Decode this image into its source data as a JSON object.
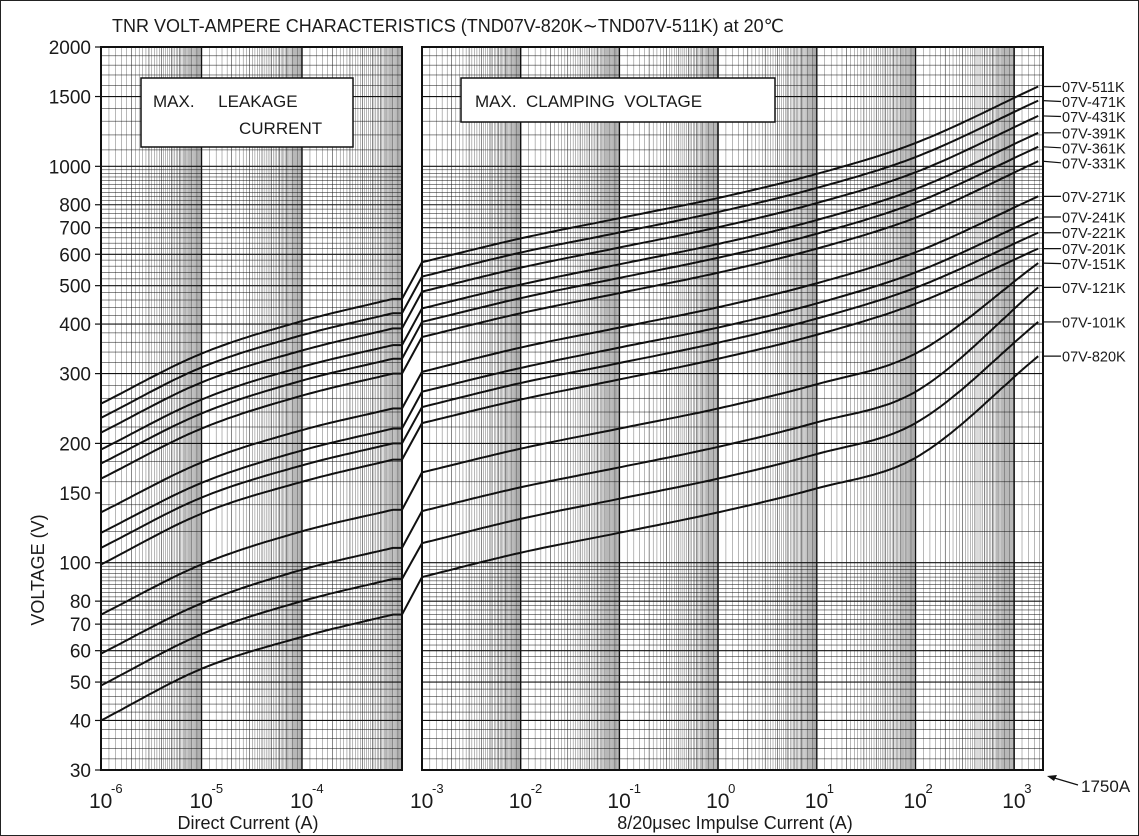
{
  "chart_data": {
    "type": "line",
    "title": "TNR VOLT-AMPERE CHARACTERISTICS (TND07V-820K∼TND07V-511K)  at 20℃",
    "ylabel": "VOLTAGE (V)",
    "yscale": "log",
    "ylim": [
      30,
      2000
    ],
    "y_ticks": [
      {
        "v": 2000,
        "label": "2000"
      },
      {
        "v": 1500,
        "label": "1500"
      },
      {
        "v": 1000,
        "label": "1000"
      },
      {
        "v": 800,
        "label": "800"
      },
      {
        "v": 700,
        "label": "700"
      },
      {
        "v": 600,
        "label": "600"
      },
      {
        "v": 500,
        "label": "500"
      },
      {
        "v": 400,
        "label": "400"
      },
      {
        "v": 300,
        "label": "300"
      },
      {
        "v": 200,
        "label": "200"
      },
      {
        "v": 150,
        "label": "150"
      },
      {
        "v": 100,
        "label": "100"
      },
      {
        "v": 80,
        "label": "80"
      },
      {
        "v": 70,
        "label": "70"
      },
      {
        "v": 60,
        "label": "60"
      },
      {
        "v": 50,
        "label": "50"
      },
      {
        "v": 40,
        "label": "40"
      },
      {
        "v": 30,
        "label": "30"
      }
    ],
    "panels": [
      {
        "name": "dc",
        "xlabel": "Direct Current (A)",
        "xscale": "log",
        "xlim": [
          1e-06,
          0.001
        ],
        "x_ticks": [
          {
            "base": "10",
            "exp": "-6"
          },
          {
            "base": "10",
            "exp": "-5"
          },
          {
            "base": "10",
            "exp": "-4"
          }
        ],
        "annotation": [
          "MAX.     LEAKAGE",
          "CURRENT"
        ]
      },
      {
        "name": "impulse",
        "xlabel": "8/20μsec  Impulse  Current (A)",
        "xscale": "log",
        "xlim": [
          0.001,
          1750
        ],
        "x_ticks": [
          {
            "base": "10",
            "exp": "-3"
          },
          {
            "base": "10",
            "exp": "-2"
          },
          {
            "base": "10",
            "exp": "-1"
          },
          {
            "base": "10",
            "exp": "0"
          },
          {
            "base": "10",
            "exp": "1"
          },
          {
            "base": "10",
            "exp": "2"
          },
          {
            "base": "10",
            "exp": "3"
          }
        ],
        "annotation": [
          "MAX.  CLAMPING  VOLTAGE"
        ]
      }
    ],
    "max_current_marker": "1750A",
    "series": [
      {
        "name": "07V-511K",
        "dc": {
          "x": [
            1e-06,
            1e-05,
            0.0001,
            0.0008
          ],
          "y": [
            252,
            337,
            407,
            463
          ]
        },
        "impulse": {
          "x": [
            0.001,
            0.01,
            0.1,
            1,
            10,
            100,
            1750
          ],
          "y": [
            573,
            658,
            740,
            832,
            957,
            1145,
            1590
          ]
        }
      },
      {
        "name": "07V-471K",
        "dc": {
          "x": [
            1e-06,
            1e-05,
            0.0001,
            0.0008
          ],
          "y": [
            232,
            311,
            375,
            426
          ]
        },
        "impulse": {
          "x": [
            0.001,
            0.01,
            0.1,
            1,
            10,
            100,
            1750
          ],
          "y": [
            527,
            606,
            681,
            767,
            882,
            1055,
            1465
          ]
        }
      },
      {
        "name": "07V-431K",
        "dc": {
          "x": [
            1e-06,
            1e-05,
            0.0001,
            0.0008
          ],
          "y": [
            213,
            285,
            343,
            390
          ]
        },
        "impulse": {
          "x": [
            0.001,
            0.01,
            0.1,
            1,
            10,
            100,
            1750
          ],
          "y": [
            483,
            555,
            624,
            702,
            808,
            966,
            1340
          ]
        }
      },
      {
        "name": "07V-391K",
        "dc": {
          "x": [
            1e-06,
            1e-05,
            0.0001,
            0.0008
          ],
          "y": [
            193,
            258,
            312,
            354
          ]
        },
        "impulse": {
          "x": [
            0.001,
            0.01,
            0.1,
            1,
            10,
            100,
            1750
          ],
          "y": [
            438,
            503,
            566,
            637,
            732,
            876,
            1215
          ]
        }
      },
      {
        "name": "07V-361K",
        "dc": {
          "x": [
            1e-06,
            1e-05,
            0.0001,
            0.0008
          ],
          "y": [
            178,
            238,
            288,
            327
          ]
        },
        "impulse": {
          "x": [
            0.001,
            0.01,
            0.1,
            1,
            10,
            100,
            1750
          ],
          "y": [
            405,
            465,
            523,
            588,
            676,
            809,
            1120
          ]
        }
      },
      {
        "name": "07V-331K",
        "dc": {
          "x": [
            1e-06,
            1e-05,
            0.0001,
            0.0008
          ],
          "y": [
            163,
            218,
            264,
            300
          ]
        },
        "impulse": {
          "x": [
            0.001,
            0.01,
            0.1,
            1,
            10,
            100,
            1750
          ],
          "y": [
            371,
            426,
            479,
            539,
            620,
            742,
            1030
          ]
        }
      },
      {
        "name": "07V-271K",
        "dc": {
          "x": [
            1e-06,
            1e-05,
            0.0001,
            0.0008
          ],
          "y": [
            134,
            179,
            216,
            245
          ]
        },
        "impulse": {
          "x": [
            0.001,
            0.01,
            0.1,
            1,
            10,
            100,
            1750
          ],
          "y": [
            303,
            349,
            392,
            441,
            507,
            607,
            840
          ]
        }
      },
      {
        "name": "07V-241K",
        "dc": {
          "x": [
            1e-06,
            1e-05,
            0.0001,
            0.0008
          ],
          "y": [
            119,
            159,
            192,
            218
          ]
        },
        "impulse": {
          "x": [
            0.001,
            0.01,
            0.1,
            1,
            10,
            100,
            1750
          ],
          "y": [
            270,
            310,
            349,
            392,
            451,
            540,
            745
          ]
        }
      },
      {
        "name": "07V-221K",
        "dc": {
          "x": [
            1e-06,
            1e-05,
            0.0001,
            0.0008
          ],
          "y": [
            109,
            146,
            176,
            200
          ]
        },
        "impulse": {
          "x": [
            0.001,
            0.01,
            0.1,
            1,
            10,
            100,
            1750
          ],
          "y": [
            247,
            284,
            319,
            359,
            413,
            494,
            680
          ]
        }
      },
      {
        "name": "07V-201K",
        "dc": {
          "x": [
            1e-06,
            1e-05,
            0.0001,
            0.0008
          ],
          "y": [
            99,
            133,
            160,
            182
          ]
        },
        "impulse": {
          "x": [
            0.001,
            0.01,
            0.1,
            1,
            10,
            100,
            1750
          ],
          "y": [
            225,
            258,
            290,
            327,
            376,
            450,
            620
          ]
        }
      },
      {
        "name": "07V-151K",
        "dc": {
          "x": [
            1e-06,
            1e-05,
            0.0001,
            0.0008
          ],
          "y": [
            74,
            99,
            120,
            136
          ]
        },
        "impulse": {
          "x": [
            0.001,
            0.01,
            0.1,
            1,
            10,
            100,
            1750
          ],
          "y": [
            169,
            194,
            218,
            245,
            282,
            337,
            570
          ]
        }
      },
      {
        "name": "07V-121K",
        "dc": {
          "x": [
            1e-06,
            1e-05,
            0.0001,
            0.0008
          ],
          "y": [
            59,
            79,
            96,
            109
          ]
        },
        "impulse": {
          "x": [
            0.001,
            0.01,
            0.1,
            1,
            10,
            100,
            1750
          ],
          "y": [
            135,
            155,
            174,
            196,
            226,
            270,
            495
          ]
        }
      },
      {
        "name": "07V-101K",
        "dc": {
          "x": [
            1e-06,
            1e-05,
            0.0001,
            0.0008
          ],
          "y": [
            49,
            66,
            80,
            91
          ]
        },
        "impulse": {
          "x": [
            0.001,
            0.01,
            0.1,
            1,
            10,
            100,
            1750
          ],
          "y": [
            112,
            129,
            145,
            163,
            188,
            225,
            405
          ]
        }
      },
      {
        "name": "07V-820K",
        "dc": {
          "x": [
            1e-06,
            1e-05,
            0.0001,
            0.0008
          ],
          "y": [
            40,
            54,
            65,
            74
          ]
        },
        "impulse": {
          "x": [
            0.001,
            0.01,
            0.1,
            1,
            10,
            100,
            1750
          ],
          "y": [
            92,
            106,
            119,
            134,
            154,
            184,
            332
          ]
        }
      }
    ]
  }
}
